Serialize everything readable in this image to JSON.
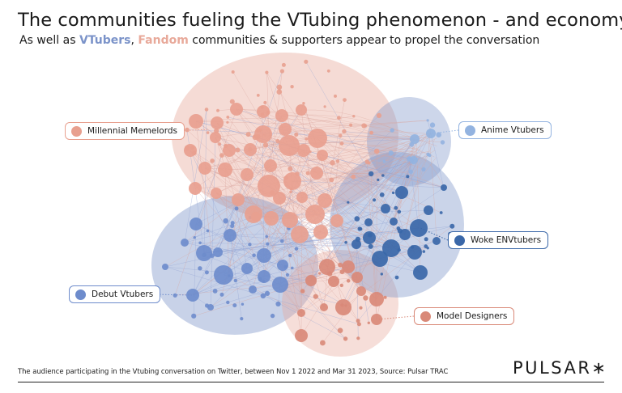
{
  "title": "The communities fueling the VTubing phenomenon - and economy",
  "subtitle": {
    "prefix": "As well as ",
    "vtubers": "VTubers",
    "comma": ", ",
    "fandom": "Fandom",
    "suffix": " communities & supporters appear to propel the conversation"
  },
  "colors": {
    "vtubers": "#7b93c9",
    "fandom": "#e8a99a",
    "millennial": "#e8a08f",
    "anime": "#93b3e0",
    "woke": "#3a67a8",
    "debut": "#6e8ccc",
    "designers": "#d98978",
    "edges": "#d9a39a"
  },
  "communities": [
    {
      "key": "millennial",
      "label": "Millennial Memelords",
      "color": "#e8a08f"
    },
    {
      "key": "anime",
      "label": "Anime Vtubers",
      "color": "#93b3e0"
    },
    {
      "key": "woke",
      "label": "Woke ENVtubers",
      "color": "#3a67a8"
    },
    {
      "key": "debut",
      "label": "Debut Vtubers",
      "color": "#6e8ccc"
    },
    {
      "key": "designers",
      "label": "Model Designers",
      "color": "#d98978"
    }
  ],
  "footer": "The audience participating in the Vtubing conversation on Twitter, between Nov 1 2022 and Mar 31 2023, Source: Pulsar TRAC",
  "logo": "PULSAR∗"
}
